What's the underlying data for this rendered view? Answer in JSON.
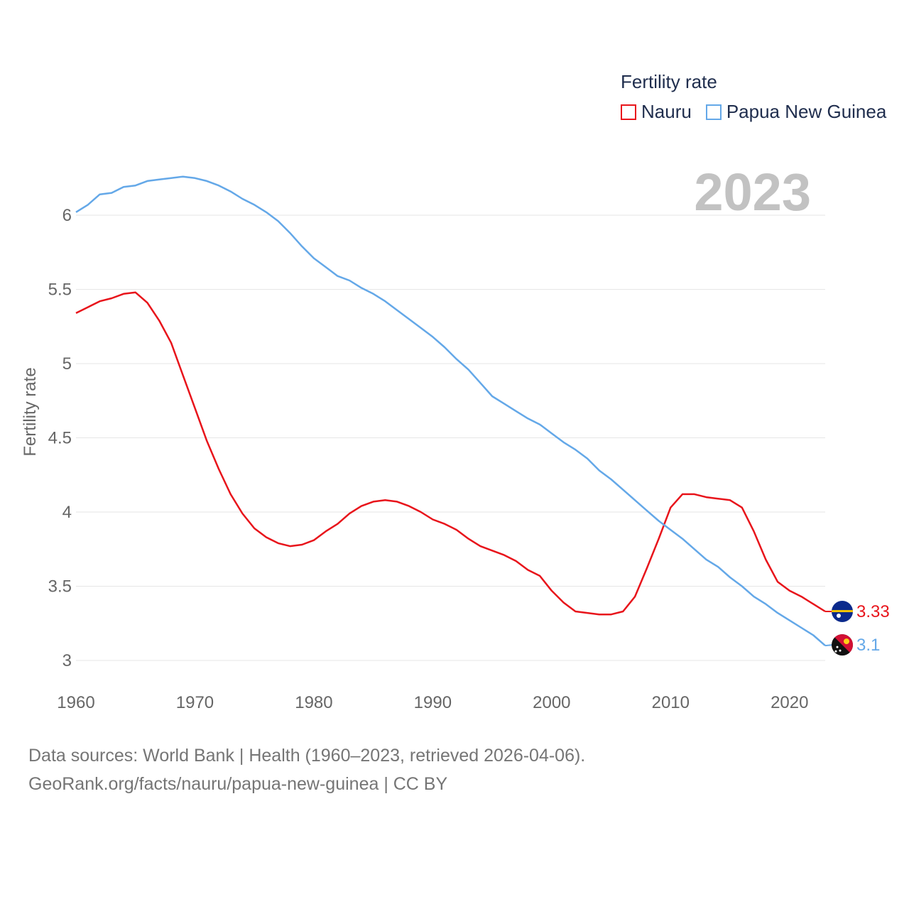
{
  "legend": {
    "title": "Fertility rate",
    "items": [
      {
        "name": "Nauru",
        "color": "#e8141b"
      },
      {
        "name": "Papua New Guinea",
        "color": "#64a8e8"
      }
    ]
  },
  "year_label": "2023",
  "source": {
    "line1": "Data sources: World Bank | Health (1960–2023, retrieved 2026-04-06).",
    "line2": "GeoRank.org/facts/nauru/papua-new-guinea | CC BY"
  },
  "chart_data": {
    "type": "line",
    "title": "Fertility rate",
    "xlabel": "",
    "ylabel": "Fertility rate",
    "xlim": [
      1960,
      2023
    ],
    "ylim": [
      2.9,
      6.3
    ],
    "x_ticks": [
      1960,
      1970,
      1980,
      1990,
      2000,
      2010,
      2020
    ],
    "y_ticks": [
      3,
      3.5,
      4,
      4.5,
      5,
      5.5,
      6
    ],
    "y_tick_labels": [
      "3",
      "3.5",
      "4",
      "4.5",
      "5",
      "5.5",
      "6"
    ],
    "grid": true,
    "legend_position": "top-right",
    "x": [
      1960,
      1961,
      1962,
      1963,
      1964,
      1965,
      1966,
      1967,
      1968,
      1969,
      1970,
      1971,
      1972,
      1973,
      1974,
      1975,
      1976,
      1977,
      1978,
      1979,
      1980,
      1981,
      1982,
      1983,
      1984,
      1985,
      1986,
      1987,
      1988,
      1989,
      1990,
      1991,
      1992,
      1993,
      1994,
      1995,
      1996,
      1997,
      1998,
      1999,
      2000,
      2001,
      2002,
      2003,
      2004,
      2005,
      2006,
      2007,
      2008,
      2009,
      2010,
      2011,
      2012,
      2013,
      2014,
      2015,
      2016,
      2017,
      2018,
      2019,
      2020,
      2021,
      2022,
      2023
    ],
    "series": [
      {
        "name": "Nauru",
        "color": "#e8141b",
        "end_label": "3.33",
        "flag": "nauru-flag-icon",
        "values": [
          5.34,
          5.38,
          5.42,
          5.44,
          5.47,
          5.48,
          5.41,
          5.29,
          5.14,
          4.92,
          4.7,
          4.48,
          4.29,
          4.12,
          3.99,
          3.89,
          3.83,
          3.79,
          3.77,
          3.78,
          3.81,
          3.87,
          3.92,
          3.99,
          4.04,
          4.07,
          4.08,
          4.07,
          4.04,
          4.0,
          3.95,
          3.92,
          3.88,
          3.82,
          3.77,
          3.74,
          3.71,
          3.67,
          3.61,
          3.57,
          3.47,
          3.39,
          3.33,
          3.32,
          3.31,
          3.31,
          3.33,
          3.43,
          3.62,
          3.82,
          4.03,
          4.12,
          4.12,
          4.1,
          4.09,
          4.08,
          4.03,
          3.87,
          3.68,
          3.53,
          3.47,
          3.43,
          3.38,
          3.33
        ]
      },
      {
        "name": "Papua New Guinea",
        "color": "#64a8e8",
        "end_label": "3.1",
        "flag": "papua-new-guinea-flag-icon",
        "values": [
          6.02,
          6.07,
          6.14,
          6.15,
          6.19,
          6.2,
          6.23,
          6.24,
          6.25,
          6.26,
          6.25,
          6.23,
          6.2,
          6.16,
          6.11,
          6.07,
          6.02,
          5.96,
          5.88,
          5.79,
          5.71,
          5.65,
          5.59,
          5.56,
          5.51,
          5.47,
          5.42,
          5.36,
          5.3,
          5.24,
          5.18,
          5.11,
          5.03,
          4.96,
          4.87,
          4.78,
          4.73,
          4.68,
          4.63,
          4.59,
          4.53,
          4.47,
          4.42,
          4.36,
          4.28,
          4.22,
          4.15,
          4.08,
          4.01,
          3.94,
          3.88,
          3.82,
          3.75,
          3.68,
          3.63,
          3.56,
          3.5,
          3.43,
          3.38,
          3.32,
          3.27,
          3.22,
          3.17,
          3.1
        ]
      }
    ]
  }
}
